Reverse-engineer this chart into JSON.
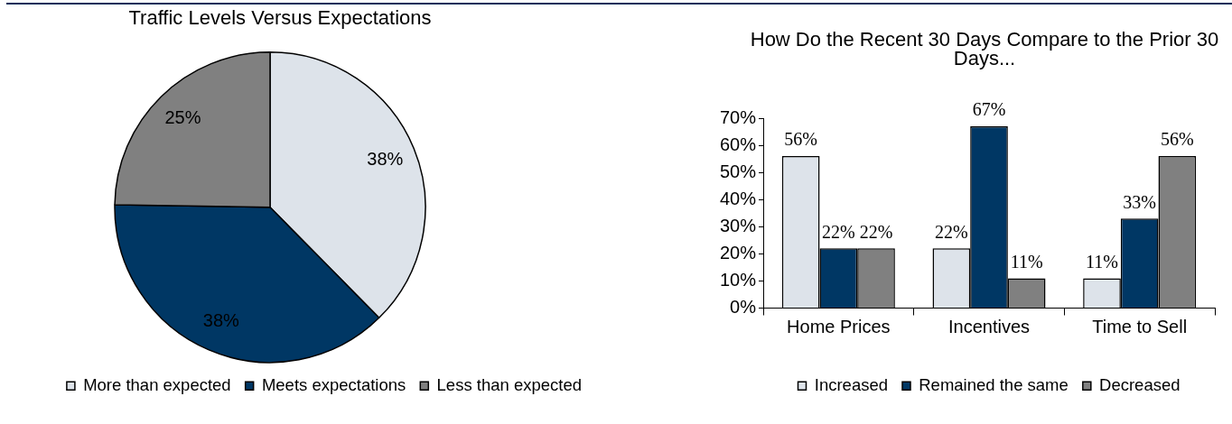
{
  "chart_data": [
    {
      "type": "pie",
      "title": "Traffic Levels Versus Expectations",
      "categories": [
        "More than expected",
        "Meets expectations",
        "Less than expected"
      ],
      "values": [
        38,
        38,
        25
      ],
      "value_labels": [
        "38%",
        "38%",
        "25%"
      ],
      "colors": [
        "#dde3ea",
        "#003764",
        "#808080"
      ],
      "legend": "bottom"
    },
    {
      "type": "bar",
      "title": "How Do the Recent 30 Days Compare to the Prior 30 Days...",
      "categories": [
        "Home Prices",
        "Incentives",
        "Time to Sell"
      ],
      "series": [
        {
          "name": "Increased",
          "color": "#dde3ea",
          "values": [
            56,
            22,
            11
          ],
          "value_labels": [
            "56%",
            "22%",
            "11%"
          ]
        },
        {
          "name": "Remained the same",
          "color": "#003764",
          "values": [
            22,
            67,
            33
          ],
          "value_labels": [
            "22%",
            "67%",
            "33%"
          ]
        },
        {
          "name": "Decreased",
          "color": "#808080",
          "values": [
            22,
            11,
            56
          ],
          "value_labels": [
            "22%",
            "11%",
            "56%"
          ]
        }
      ],
      "ylim": [
        0,
        70
      ],
      "yticks": [
        {
          "value": 0,
          "label": "0%"
        },
        {
          "value": 10,
          "label": "10%"
        },
        {
          "value": 20,
          "label": "20%"
        },
        {
          "value": 30,
          "label": "30%"
        },
        {
          "value": 40,
          "label": "40%"
        },
        {
          "value": 50,
          "label": "50%"
        },
        {
          "value": 60,
          "label": "60%"
        },
        {
          "value": 70,
          "label": "70%"
        }
      ],
      "legend": "bottom"
    }
  ]
}
